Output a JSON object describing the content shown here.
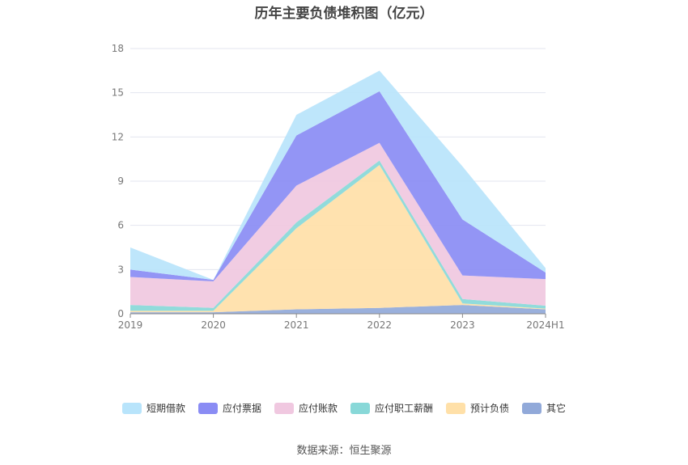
{
  "title": "历年主要负债堆积图（亿元）",
  "source": "数据来源：恒生聚源",
  "chart_data": {
    "type": "area",
    "stacked": true,
    "categories": [
      "2019",
      "2020",
      "2021",
      "2022",
      "2023",
      "2024H1"
    ],
    "ylim": [
      0,
      18
    ],
    "yticks": [
      0,
      3,
      6,
      9,
      12,
      15,
      18
    ],
    "grid": true,
    "legend_position": "bottom",
    "series": [
      {
        "name": "其它",
        "color": "#91a9d9",
        "values": [
          0.1,
          0.1,
          0.3,
          0.4,
          0.6,
          0.3
        ]
      },
      {
        "name": "预计负债",
        "color": "#ffe0a8",
        "values": [
          0.1,
          0.1,
          5.5,
          9.7,
          0.1,
          0.05
        ]
      },
      {
        "name": "应付职工薪酬",
        "color": "#88d8d8",
        "values": [
          0.4,
          0.2,
          0.4,
          0.3,
          0.3,
          0.2
        ]
      },
      {
        "name": "应付账款",
        "color": "#f0c8e0",
        "values": [
          1.9,
          1.8,
          2.5,
          1.2,
          1.6,
          1.8
        ]
      },
      {
        "name": "应付票据",
        "color": "#8a8cf4",
        "values": [
          0.5,
          0.1,
          3.4,
          3.5,
          3.8,
          0.45
        ]
      },
      {
        "name": "短期借款",
        "color": "#b8e4fb",
        "values": [
          1.5,
          0.0,
          1.4,
          1.4,
          3.6,
          0.3
        ]
      }
    ]
  },
  "legend_order": [
    "短期借款",
    "应付票据",
    "应付账款",
    "应付职工薪酬",
    "预计负债",
    "其它"
  ]
}
